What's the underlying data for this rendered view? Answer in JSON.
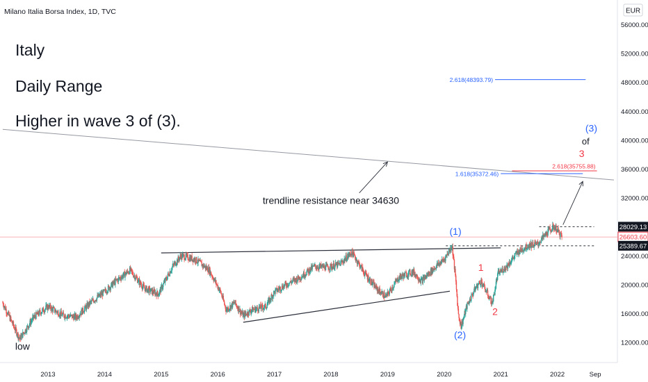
{
  "header": {
    "symbol_title": "Milano Italia Borsa Index, 1D, TVC",
    "currency_button": "EUR"
  },
  "notes": {
    "line1": "Italy",
    "line2": "Daily Range",
    "line3": "Higher in wave 3 of (3)."
  },
  "colors": {
    "candle_up": "#26a69a",
    "candle_down": "#ef5350",
    "fib_blue": "#2962ff",
    "fib_red": "#f23645",
    "wave_blue": "#2962ff",
    "wave_red": "#f23645",
    "trendline": "#9598a1",
    "current_price_line": "#f7b2b5",
    "axis_text": "#131722"
  },
  "chart_data": {
    "type": "candlestick",
    "title": "Milano Italia Borsa Index, 1D, TVC",
    "currency": "EUR",
    "x_ticks": [
      "2013",
      "2014",
      "2015",
      "2016",
      "2017",
      "2018",
      "2019",
      "2020",
      "2021",
      "2022",
      "Sep"
    ],
    "y_ticks": [
      "12000.00",
      "16000.00",
      "20000.00",
      "24000.00",
      "28000.00",
      "32000.00",
      "36000.00",
      "40000.00",
      "44000.00",
      "48000.00",
      "52000.00",
      "56000.00"
    ],
    "ylim": [
      10000,
      58000
    ],
    "xlim": [
      2012.2,
      2023.0
    ],
    "price_path": [
      {
        "t": 2012.2,
        "v": 17500
      },
      {
        "t": 2012.35,
        "v": 15000
      },
      {
        "t": 2012.5,
        "v": 12500
      },
      {
        "t": 2012.75,
        "v": 15500
      },
      {
        "t": 2013.0,
        "v": 17000
      },
      {
        "t": 2013.25,
        "v": 15800
      },
      {
        "t": 2013.5,
        "v": 15500
      },
      {
        "t": 2013.75,
        "v": 17500
      },
      {
        "t": 2014.0,
        "v": 19000
      },
      {
        "t": 2014.2,
        "v": 20500
      },
      {
        "t": 2014.45,
        "v": 22000
      },
      {
        "t": 2014.7,
        "v": 19500
      },
      {
        "t": 2014.95,
        "v": 18700
      },
      {
        "t": 2015.2,
        "v": 22500
      },
      {
        "t": 2015.35,
        "v": 24000
      },
      {
        "t": 2015.6,
        "v": 23500
      },
      {
        "t": 2015.85,
        "v": 22000
      },
      {
        "t": 2016.05,
        "v": 19000
      },
      {
        "t": 2016.15,
        "v": 16500
      },
      {
        "t": 2016.3,
        "v": 17500
      },
      {
        "t": 2016.45,
        "v": 15700
      },
      {
        "t": 2016.6,
        "v": 16500
      },
      {
        "t": 2016.85,
        "v": 17000
      },
      {
        "t": 2017.0,
        "v": 19000
      },
      {
        "t": 2017.2,
        "v": 20000
      },
      {
        "t": 2017.45,
        "v": 21000
      },
      {
        "t": 2017.7,
        "v": 22500
      },
      {
        "t": 2017.95,
        "v": 22400
      },
      {
        "t": 2018.15,
        "v": 22800
      },
      {
        "t": 2018.37,
        "v": 24500
      },
      {
        "t": 2018.6,
        "v": 21500
      },
      {
        "t": 2018.8,
        "v": 19500
      },
      {
        "t": 2018.97,
        "v": 18300
      },
      {
        "t": 2019.2,
        "v": 21000
      },
      {
        "t": 2019.45,
        "v": 21800
      },
      {
        "t": 2019.6,
        "v": 20500
      },
      {
        "t": 2019.85,
        "v": 22500
      },
      {
        "t": 2020.0,
        "v": 23500
      },
      {
        "t": 2020.14,
        "v": 25400
      },
      {
        "t": 2020.2,
        "v": 21000
      },
      {
        "t": 2020.25,
        "v": 16000
      },
      {
        "t": 2020.3,
        "v": 14200
      },
      {
        "t": 2020.4,
        "v": 17000
      },
      {
        "t": 2020.55,
        "v": 19500
      },
      {
        "t": 2020.65,
        "v": 20500
      },
      {
        "t": 2020.78,
        "v": 18500
      },
      {
        "t": 2020.85,
        "v": 17400
      },
      {
        "t": 2020.95,
        "v": 21500
      },
      {
        "t": 2021.1,
        "v": 22500
      },
      {
        "t": 2021.3,
        "v": 24500
      },
      {
        "t": 2021.5,
        "v": 25500
      },
      {
        "t": 2021.65,
        "v": 25600
      },
      {
        "t": 2021.85,
        "v": 27500
      },
      {
        "t": 2021.95,
        "v": 28029
      },
      {
        "t": 2022.05,
        "v": 27000
      },
      {
        "t": 2022.08,
        "v": 26603
      }
    ],
    "price_labels": [
      {
        "text": "28029.13",
        "value": 28029.13,
        "style": "dark"
      },
      {
        "text": "26603.60",
        "value": 26603.6,
        "style": "current"
      },
      {
        "text": "25389.67",
        "value": 25389.67,
        "style": "dark"
      }
    ],
    "horizontal_levels": [
      {
        "label": "2.618(48393.79)",
        "value": 48393.79,
        "color": "blue",
        "t0": 2020.9,
        "t1": 2022.5
      },
      {
        "label": "2.618(35755.88)",
        "value": 35755.88,
        "color": "red",
        "t0": 2021.2,
        "t1": 2022.7
      },
      {
        "label": "1.618(35372.46)",
        "value": 35372.46,
        "color": "blue",
        "t0": 2021.0,
        "t1": 2022.45
      }
    ],
    "dashed_levels": [
      {
        "value": 28029.13,
        "t0": 2021.68,
        "t1": 2022.65
      },
      {
        "value": 25389.67,
        "t0": 2020.03,
        "t1": 2022.65
      }
    ],
    "lines": [
      {
        "name": "long-term-trendline",
        "t0": 2012.2,
        "v0": 41500,
        "t1": 2023.0,
        "v1": 34500
      },
      {
        "name": "upper-triangle-line",
        "t0": 2015.0,
        "v0": 24400,
        "t1": 2021.0,
        "v1": 25100
      },
      {
        "name": "lower-triangle-line",
        "t0": 2016.45,
        "v0": 14800,
        "t1": 2020.1,
        "v1": 19100
      }
    ],
    "arrows": [
      {
        "name": "trendline-callout-arrow",
        "t0": 2018.5,
        "v0": 32700,
        "t1": 2019.0,
        "v1": 37000
      },
      {
        "name": "wave-target-arrow",
        "t0": 2022.1,
        "v0": 28300,
        "t1": 2022.45,
        "v1": 34300
      }
    ],
    "annotations": [
      {
        "name": "trendline-note",
        "text": "trendline resistance near 34630",
        "t": 2018.0,
        "v": 31200,
        "color": "dark",
        "size": 14
      },
      {
        "name": "wave-1-blue",
        "text": "(1)",
        "t": 2020.2,
        "v": 26900,
        "color": "blue",
        "size": 14
      },
      {
        "name": "wave-2-blue",
        "text": "(2)",
        "t": 2020.28,
        "v": 12600,
        "color": "blue",
        "size": 14
      },
      {
        "name": "wave-1-red",
        "text": "1",
        "t": 2020.65,
        "v": 21900,
        "color": "red",
        "size": 14
      },
      {
        "name": "wave-2-red",
        "text": "2",
        "t": 2020.9,
        "v": 15800,
        "color": "red",
        "size": 14
      },
      {
        "name": "wave-3-red",
        "text": "3",
        "t": 2022.43,
        "v": 37700,
        "color": "red",
        "size": 14
      },
      {
        "name": "wave-of",
        "text": "of",
        "t": 2022.5,
        "v": 39400,
        "color": "dark",
        "size": 13
      },
      {
        "name": "wave-3-blue",
        "text": "(3)",
        "t": 2022.6,
        "v": 41200,
        "color": "blue",
        "size": 14
      },
      {
        "name": "low-label",
        "text": "low",
        "t": 2012.55,
        "v": 11000,
        "color": "dark",
        "size": 14
      }
    ]
  }
}
